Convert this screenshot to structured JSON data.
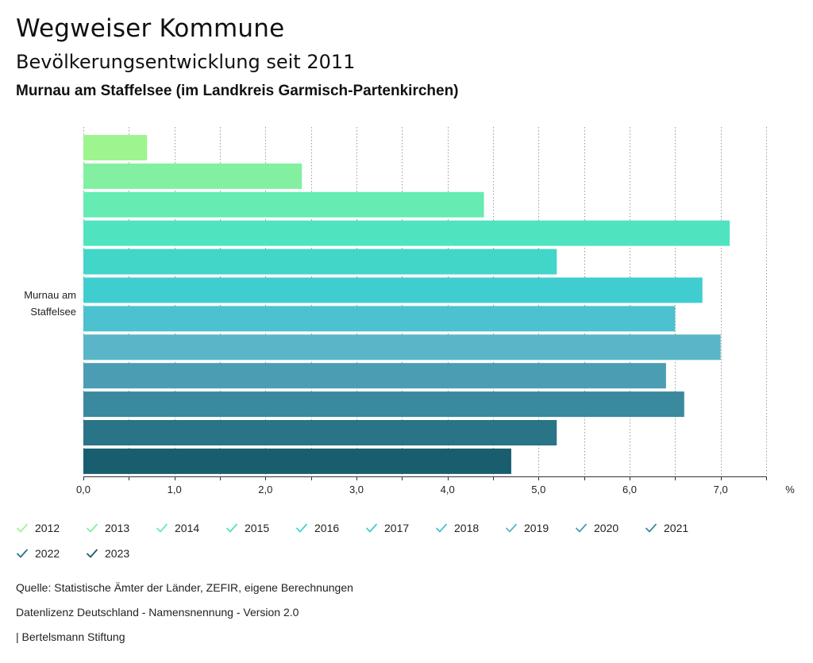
{
  "header": {
    "title": "Wegweiser Kommune",
    "subtitle": "Bevölkerungsentwicklung seit 2011",
    "region": "Murnau am Staffelsee (im Landkreis Garmisch-Partenkirchen)"
  },
  "chart_data": {
    "type": "bar",
    "orientation": "horizontal",
    "title": "Bevölkerungsentwicklung seit 2011",
    "categories": [
      "Murnau am Staffelsee"
    ],
    "category_label_lines": [
      "Murnau am",
      "Staffelsee"
    ],
    "series": [
      {
        "name": "2012",
        "values": [
          0.7
        ],
        "color": "#9ef58f"
      },
      {
        "name": "2013",
        "values": [
          2.4
        ],
        "color": "#82f0a0"
      },
      {
        "name": "2014",
        "values": [
          4.4
        ],
        "color": "#66ebb2"
      },
      {
        "name": "2015",
        "values": [
          7.1
        ],
        "color": "#50e3c0"
      },
      {
        "name": "2016",
        "values": [
          5.2
        ],
        "color": "#42d6c8"
      },
      {
        "name": "2017",
        "values": [
          6.8
        ],
        "color": "#40cdd0"
      },
      {
        "name": "2018",
        "values": [
          6.5
        ],
        "color": "#4cc1cf"
      },
      {
        "name": "2019",
        "values": [
          7.0
        ],
        "color": "#5ab5c8"
      },
      {
        "name": "2020",
        "values": [
          6.4
        ],
        "color": "#4a9db3"
      },
      {
        "name": "2021",
        "values": [
          6.6
        ],
        "color": "#3a899e"
      },
      {
        "name": "2022",
        "values": [
          5.2
        ],
        "color": "#2a7487"
      },
      {
        "name": "2023",
        "values": [
          4.7
        ],
        "color": "#195e6e"
      }
    ],
    "xlim": [
      0,
      7.5
    ],
    "xticks": [
      0,
      1,
      2,
      3,
      4,
      5,
      6,
      7
    ],
    "xtick_labels": [
      "0,0",
      "1,0",
      "2,0",
      "3,0",
      "4,0",
      "5,0",
      "6,0",
      "7,0"
    ],
    "xlabel": "%",
    "grid": true,
    "legend_position": "bottom"
  },
  "footer": {
    "source": "Quelle: Statistische Ämter der Länder, ZEFIR, eigene Berechnungen",
    "license": "Datenlizenz Deutschland - Namensnennung - Version 2.0",
    "publisher": "| Bertelsmann Stiftung"
  }
}
